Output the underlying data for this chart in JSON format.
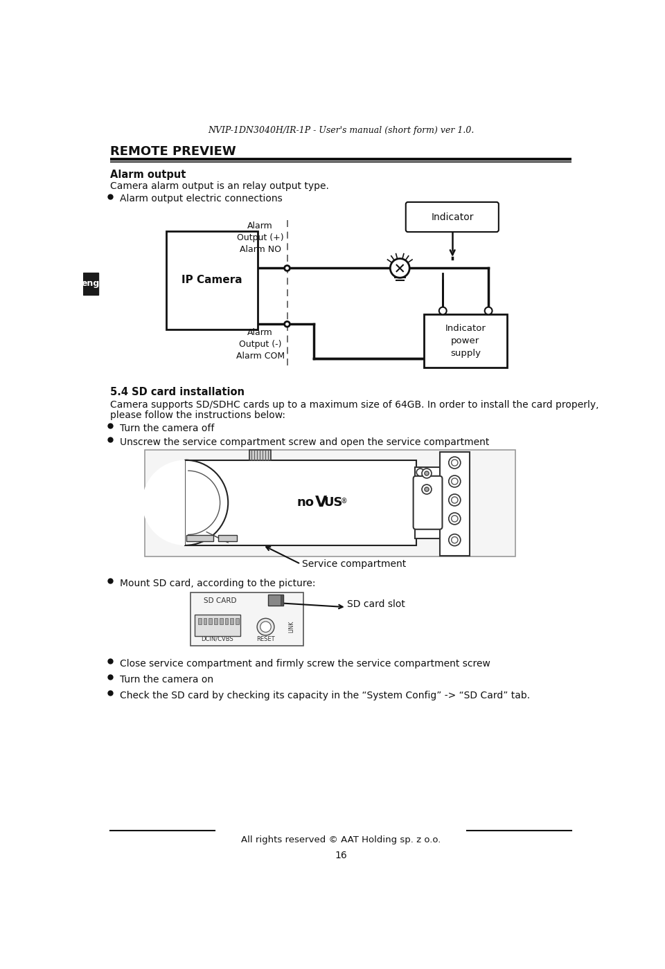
{
  "bg_color": "#ffffff",
  "header_italic": "NVIP-1DN3040H/IR-1P - User's manual (short form) ver 1.0.",
  "section_title": "REMOTE PREVIEW",
  "subsection1_title": "Alarm output",
  "subsection1_body": "Camera alarm output is an relay output type.",
  "bullet1_text": "Alarm output electric connections",
  "ip_camera_label": "IP Camera",
  "alarm_output_plus": "Alarm\nOutput (+)\nAlarm NO",
  "alarm_output_minus": "Alarm\nOutput (-)\nAlarm COM",
  "indicator_label": "Indicator",
  "indicator_power_label": "Indicator\npower\nsupply",
  "eng_label": "eng",
  "subsection2_title": "5.4 SD card installation",
  "subsection2_body1": "Camera supports SD/SDHC cards up to a maximum size of 64GB. In order to install the card properly,",
  "subsection2_body2": "please follow the instructions below:",
  "bullet2_text": "Turn the camera off",
  "bullet3_text": "Unscrew the service compartment screw and open the service compartment",
  "service_compartment_label": "Service compartment",
  "bullet4_text": "Mount SD card, according to the picture:",
  "sd_card_slot_label": "SD card slot",
  "bullet5_text": "Close service compartment and firmly screw the service compartment screw",
  "bullet6_text": "Turn the camera on",
  "bullet7_text": "Check the SD card by checking its capacity in the “System Config” -> “SD Card” tab.",
  "footer_text": "All rights reserved © AAT Holding sp. z o.o.",
  "page_number": "16"
}
